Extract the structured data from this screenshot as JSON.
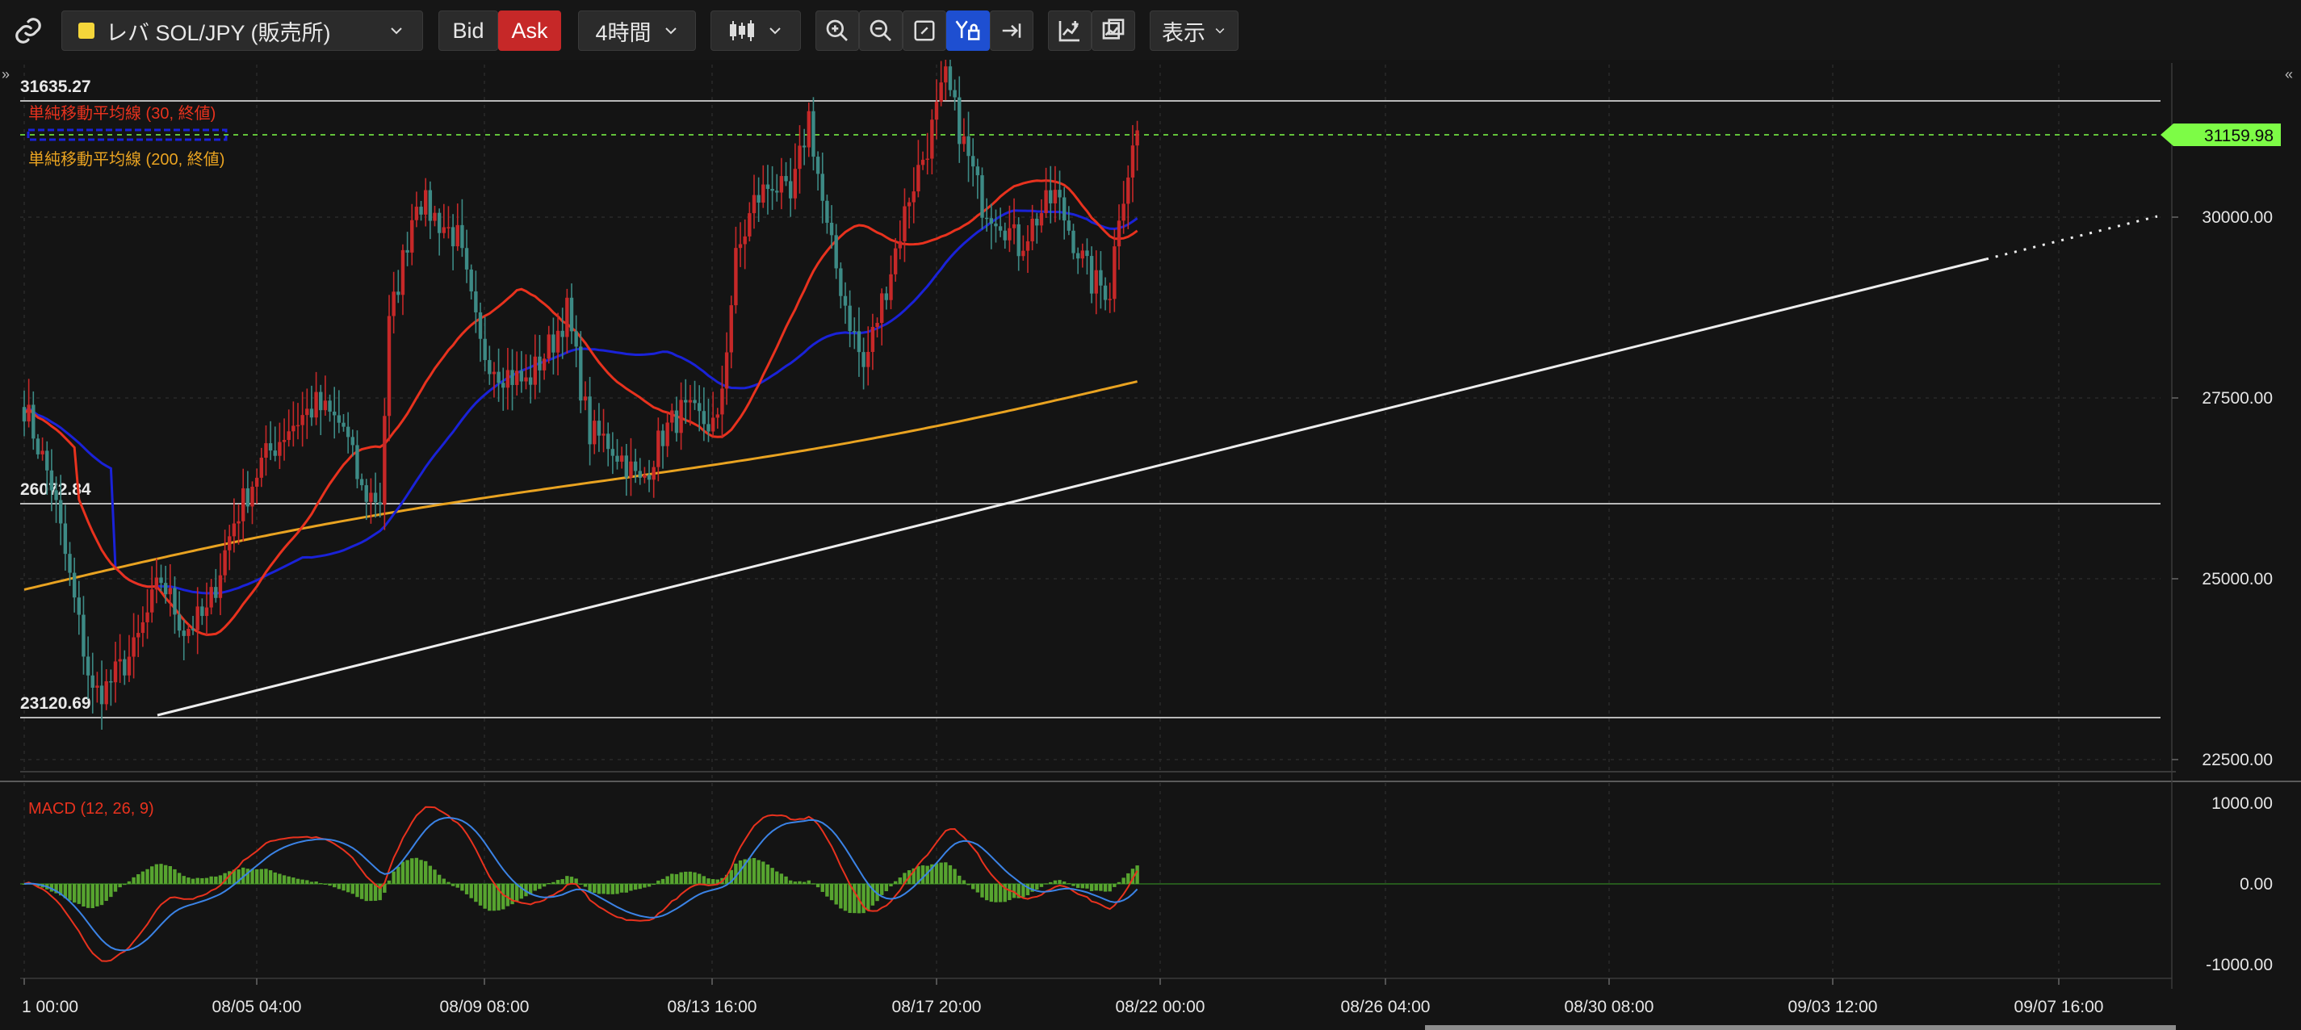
{
  "toolbar": {
    "symbol": "レバ SOL/JPY (販売所)",
    "bid_label": "Bid",
    "ask_label": "Ask",
    "timeframe": "4時間",
    "display_label": "表示"
  },
  "chart_data": {
    "type": "candlestick",
    "price_axis": {
      "ticks": [
        "30000.00",
        "27500.00",
        "25000.00",
        "22500.00"
      ],
      "range": [
        22250,
        32450
      ]
    },
    "time_axis": {
      "ticks": [
        "1 00:00",
        "08/05 04:00",
        "08/09 08:00",
        "08/13 16:00",
        "08/17 20:00",
        "08/22 00:00",
        "08/26 04:00",
        "08/30 08:00",
        "09/03 12:00",
        "09/07 16:00"
      ]
    },
    "horizontal_lines": {
      "high": "31635.27",
      "mid": "26072.84",
      "low": "23120.69"
    },
    "current_price": "31159.98",
    "indicators": {
      "sma30": "単純移動平均線 (30, 終値)",
      "sma200": "単純移動平均線 (200, 終値)"
    },
    "macd": {
      "label": "MACD (12, 26, 9)",
      "ticks": [
        "1000.00",
        "0.00",
        "-1000.00"
      ]
    },
    "colors": {
      "up": "#c62828",
      "down": "#3d8a85",
      "sma30": "#e8321e",
      "sma_blue": "#1a22d8",
      "sma200": "#e9a321",
      "trendline": "#eeeeee",
      "current_price_tag": "#7dfc46",
      "macd_hist": "#57a42f"
    },
    "anchors": [
      [
        0,
        27400
      ],
      [
        6,
        26300
      ],
      [
        10,
        25000
      ],
      [
        15,
        23400
      ],
      [
        18,
        23500
      ],
      [
        24,
        24000
      ],
      [
        30,
        25000
      ],
      [
        35,
        24300
      ],
      [
        40,
        24500
      ],
      [
        46,
        25800
      ],
      [
        52,
        26600
      ],
      [
        58,
        27100
      ],
      [
        64,
        27400
      ],
      [
        70,
        27100
      ],
      [
        74,
        26200
      ],
      [
        78,
        26100
      ],
      [
        80,
        28500
      ],
      [
        86,
        30300
      ],
      [
        90,
        30000
      ],
      [
        95,
        29700
      ],
      [
        100,
        28200
      ],
      [
        104,
        27900
      ],
      [
        110,
        27700
      ],
      [
        116,
        28300
      ],
      [
        119,
        28700
      ],
      [
        124,
        27000
      ],
      [
        128,
        26900
      ],
      [
        132,
        26600
      ],
      [
        135,
        26300
      ],
      [
        140,
        27000
      ],
      [
        144,
        27300
      ],
      [
        148,
        27200
      ],
      [
        152,
        27100
      ],
      [
        156,
        29400
      ],
      [
        160,
        30200
      ],
      [
        164,
        30500
      ],
      [
        168,
        30200
      ],
      [
        172,
        31400
      ],
      [
        176,
        29800
      ],
      [
        180,
        28800
      ],
      [
        184,
        27900
      ],
      [
        190,
        29300
      ],
      [
        194,
        30300
      ],
      [
        198,
        31000
      ],
      [
        202,
        31900
      ],
      [
        206,
        31000
      ],
      [
        210,
        30200
      ],
      [
        214,
        30000
      ],
      [
        218,
        29600
      ],
      [
        222,
        30000
      ],
      [
        226,
        30300
      ],
      [
        230,
        29700
      ],
      [
        234,
        29100
      ],
      [
        238,
        29000
      ],
      [
        240,
        30100
      ],
      [
        244,
        31200
      ]
    ]
  }
}
